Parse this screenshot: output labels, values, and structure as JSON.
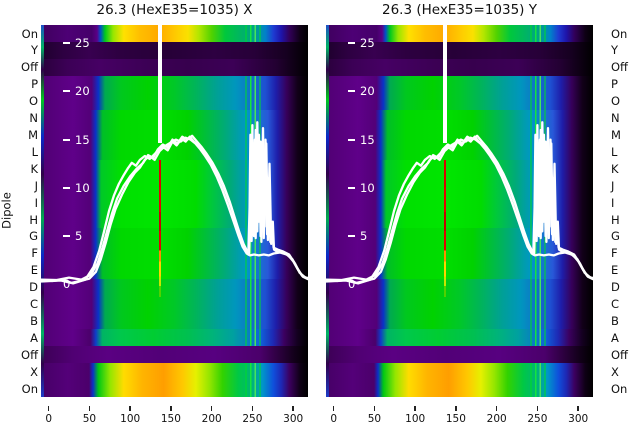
{
  "panels": [
    {
      "id": "X",
      "title": "26.3 (HexE35=1035) X"
    },
    {
      "id": "Y",
      "title": "26.3 (HexE35=1035) Y"
    }
  ],
  "axis": {
    "ylabel": "Dipole",
    "x_tick_labels": [
      "0",
      "50",
      "100",
      "150",
      "200",
      "250",
      "300"
    ],
    "y_tick_labels_inside": [
      "25",
      "20",
      "15",
      "10",
      "5",
      "0"
    ],
    "y_tick_labels_between_panels": [
      "25",
      "20",
      "15",
      "10",
      "5",
      "0"
    ],
    "row_labels": [
      "On",
      "Y",
      "Off",
      "P",
      "O",
      "N",
      "M",
      "L",
      "K",
      "J",
      "I",
      "H",
      "G",
      "F",
      "E",
      "D",
      "C",
      "B",
      "A",
      "Off",
      "X",
      "On"
    ]
  },
  "chart_data": {
    "type": "heatmap",
    "title_left": "26.3 (HexE35=1035) X",
    "title_right": "26.3 (HexE35=1035) Y",
    "colormap": "nipy_spectral-like (black-purple-blue-green-yellow-orange)",
    "palette": {
      "purple": "#5f0089",
      "dark_purple": "#2d0041",
      "blue": "#0a32c8",
      "green": "#00d200",
      "teal": "#00a096",
      "yellow": "#ffe100",
      "orange": "#ffaa00",
      "black": "#000000",
      "curve": "#ffffff",
      "marker_red": "#dc0000",
      "marker_yellow": "#ffd200"
    },
    "axes": {
      "x_range": [
        -9.4,
        318.2
      ],
      "y_range": [
        -11.67,
        26.88
      ],
      "x_ticks": [
        0,
        50,
        100,
        150,
        200,
        250,
        300
      ],
      "y_ticks": [
        25,
        20,
        15,
        10,
        5,
        0
      ]
    },
    "heatmap_rows": [
      {
        "label": "On",
        "style": "bright-top",
        "intensity": "hot"
      },
      {
        "label": "Y",
        "style": "dark-a",
        "intensity": "off"
      },
      {
        "label": "Off",
        "style": "dark-b",
        "intensity": "off"
      },
      {
        "label": "P",
        "style": "body-a",
        "intensity": "mid"
      },
      {
        "label": "O",
        "style": "body-a",
        "intensity": "mid"
      },
      {
        "label": "N",
        "style": "body-b",
        "intensity": "mid-high"
      },
      {
        "label": "M",
        "style": "body-b",
        "intensity": "mid-high"
      },
      {
        "label": "L",
        "style": "body-b",
        "intensity": "mid-high"
      },
      {
        "label": "K",
        "style": "body-c",
        "intensity": "high"
      },
      {
        "label": "J",
        "style": "body-c",
        "intensity": "high"
      },
      {
        "label": "I",
        "style": "body-c",
        "intensity": "high"
      },
      {
        "label": "H",
        "style": "body-c",
        "intensity": "high"
      },
      {
        "label": "G",
        "style": "body-b",
        "intensity": "mid-high"
      },
      {
        "label": "F",
        "style": "body-b",
        "intensity": "mid-high"
      },
      {
        "label": "E",
        "style": "body-b",
        "intensity": "mid-high"
      },
      {
        "label": "D",
        "style": "body-a",
        "intensity": "mid"
      },
      {
        "label": "C",
        "style": "body-a",
        "intensity": "mid"
      },
      {
        "label": "B",
        "style": "body-a",
        "intensity": "mid"
      },
      {
        "label": "A",
        "style": "body-teal",
        "intensity": "mid"
      },
      {
        "label": "Off",
        "style": "dark-c",
        "intensity": "off"
      },
      {
        "label": "X",
        "style": "bright-bottom",
        "intensity": "hot"
      },
      {
        "label": "On",
        "style": "bright-bottom",
        "intensity": "hot"
      }
    ],
    "marker": {
      "x": 137,
      "artifact_band_x": [
        245,
        276
      ]
    },
    "overlay_series": [
      {
        "name": "profile-1",
        "points": [
          [
            -9,
            0.4
          ],
          [
            5,
            0.35
          ],
          [
            18,
            0.5
          ],
          [
            28,
            0.15
          ],
          [
            38,
            0.35
          ],
          [
            50,
            0.6
          ],
          [
            58,
            1.3
          ],
          [
            64,
            2.6
          ],
          [
            70,
            4.3
          ],
          [
            76,
            6.2
          ],
          [
            82,
            7.8
          ],
          [
            90,
            9.3
          ],
          [
            98,
            10.6
          ],
          [
            106,
            11.6
          ],
          [
            112,
            12.1
          ],
          [
            118,
            12.9
          ],
          [
            124,
            13.3
          ],
          [
            130,
            12.9
          ],
          [
            136,
            13.8
          ],
          [
            141,
            14.2
          ],
          [
            146,
            13.9
          ],
          [
            152,
            14.8
          ],
          [
            157,
            14.4
          ],
          [
            163,
            15.1
          ],
          [
            168,
            14.8
          ],
          [
            173,
            15.3
          ],
          [
            178,
            14.8
          ],
          [
            184,
            14.4
          ],
          [
            190,
            13.8
          ],
          [
            196,
            13.1
          ],
          [
            203,
            12.2
          ],
          [
            210,
            11
          ],
          [
            217,
            9.6
          ],
          [
            224,
            8
          ],
          [
            230,
            6.3
          ],
          [
            236,
            4.8
          ],
          [
            241,
            3.7
          ],
          [
            245,
            3.1
          ],
          [
            246.5,
            8
          ],
          [
            247.5,
            15.5
          ],
          [
            248.5,
            5.5
          ],
          [
            250,
            16.5
          ],
          [
            251,
            6
          ],
          [
            253,
            15
          ],
          [
            254,
            4.8
          ],
          [
            256,
            16.8
          ],
          [
            258,
            6.5
          ],
          [
            260,
            14.8
          ],
          [
            261,
            4.4
          ],
          [
            263,
            16.2
          ],
          [
            265,
            6
          ],
          [
            267,
            14.6
          ],
          [
            269,
            4.6
          ],
          [
            271,
            12.5
          ],
          [
            273,
            4.2
          ],
          [
            275,
            6.5
          ],
          [
            276.5,
            3.6
          ],
          [
            280,
            3.4
          ],
          [
            287,
            3.3
          ],
          [
            294,
            3
          ],
          [
            300,
            2.4
          ],
          [
            306,
            1.5
          ],
          [
            312,
            0.8
          ],
          [
            318,
            0.55
          ],
          [
            326,
            0.5
          ]
        ]
      },
      {
        "name": "profile-2",
        "points": [
          [
            -9,
            0.5
          ],
          [
            10,
            0.45
          ],
          [
            25,
            0.7
          ],
          [
            40,
            0.5
          ],
          [
            52,
            1
          ],
          [
            60,
            2.2
          ],
          [
            66,
            3.8
          ],
          [
            72,
            5.6
          ],
          [
            78,
            7.4
          ],
          [
            84,
            8.9
          ],
          [
            92,
            10.2
          ],
          [
            100,
            11.2
          ],
          [
            108,
            12
          ],
          [
            116,
            12.6
          ],
          [
            122,
            13.4
          ],
          [
            128,
            13.1
          ],
          [
            134,
            14
          ],
          [
            140,
            14.5
          ],
          [
            146,
            14.2
          ],
          [
            152,
            15
          ],
          [
            158,
            14.6
          ],
          [
            164,
            15.3
          ],
          [
            170,
            15
          ],
          [
            176,
            15.4
          ],
          [
            182,
            14.8
          ],
          [
            188,
            14.2
          ],
          [
            194,
            13.5
          ],
          [
            201,
            12.6
          ],
          [
            208,
            11.5
          ],
          [
            215,
            10.2
          ],
          [
            222,
            8.6
          ],
          [
            228,
            7
          ],
          [
            234,
            5.4
          ],
          [
            239,
            4.2
          ],
          [
            244,
            3.4
          ],
          [
            246,
            3.2
          ],
          [
            248,
            10
          ],
          [
            249,
            4.5
          ],
          [
            251,
            13
          ],
          [
            252,
            5
          ],
          [
            254,
            16
          ],
          [
            256,
            5.5
          ],
          [
            258,
            15.5
          ],
          [
            260,
            5
          ],
          [
            262,
            13.5
          ],
          [
            264,
            4.8
          ],
          [
            266,
            15
          ],
          [
            268,
            5.2
          ],
          [
            270,
            11
          ],
          [
            272,
            4.4
          ],
          [
            274,
            5.8
          ],
          [
            276,
            3.8
          ],
          [
            281,
            3.6
          ],
          [
            288,
            3.4
          ],
          [
            295,
            3.1
          ],
          [
            302,
            2.2
          ],
          [
            308,
            1.2
          ],
          [
            315,
            0.7
          ],
          [
            326,
            0.6
          ]
        ]
      },
      {
        "name": "profile-3",
        "points": [
          [
            -9,
            0.3
          ],
          [
            15,
            0.4
          ],
          [
            30,
            0.1
          ],
          [
            45,
            0.5
          ],
          [
            55,
            1.8
          ],
          [
            62,
            3.5
          ],
          [
            68,
            5.5
          ],
          [
            74,
            7.6
          ],
          [
            80,
            9.2
          ],
          [
            86,
            10.4
          ],
          [
            92,
            11.3
          ],
          [
            97,
            12
          ],
          [
            102,
            12.6
          ],
          [
            107,
            12.3
          ],
          [
            112,
            12.9
          ],
          [
            118,
            13.3
          ],
          [
            124,
            13
          ],
          [
            130,
            13.5
          ],
          [
            137,
            14.1
          ],
          [
            144,
            14.4
          ],
          [
            150,
            14.7
          ],
          [
            156,
            15
          ],
          [
            162,
            14.8
          ],
          [
            168,
            15.2
          ],
          [
            174,
            15
          ],
          [
            180,
            14.6
          ],
          [
            186,
            14
          ],
          [
            192,
            13.3
          ],
          [
            199,
            12.4
          ],
          [
            206,
            11.2
          ],
          [
            213,
            9.8
          ],
          [
            220,
            8.2
          ],
          [
            227,
            6.5
          ],
          [
            233,
            5
          ],
          [
            238,
            3.9
          ],
          [
            243,
            3.2
          ],
          [
            247,
            3
          ],
          [
            252,
            3.1
          ],
          [
            258,
            3
          ],
          [
            264,
            3.1
          ],
          [
            270,
            3
          ],
          [
            276,
            3.2
          ],
          [
            284,
            3.3
          ],
          [
            292,
            3.1
          ],
          [
            299,
            2.6
          ],
          [
            305,
            1.7
          ],
          [
            311,
            0.9
          ],
          [
            318,
            0.6
          ],
          [
            326,
            0.5
          ]
        ]
      }
    ]
  }
}
